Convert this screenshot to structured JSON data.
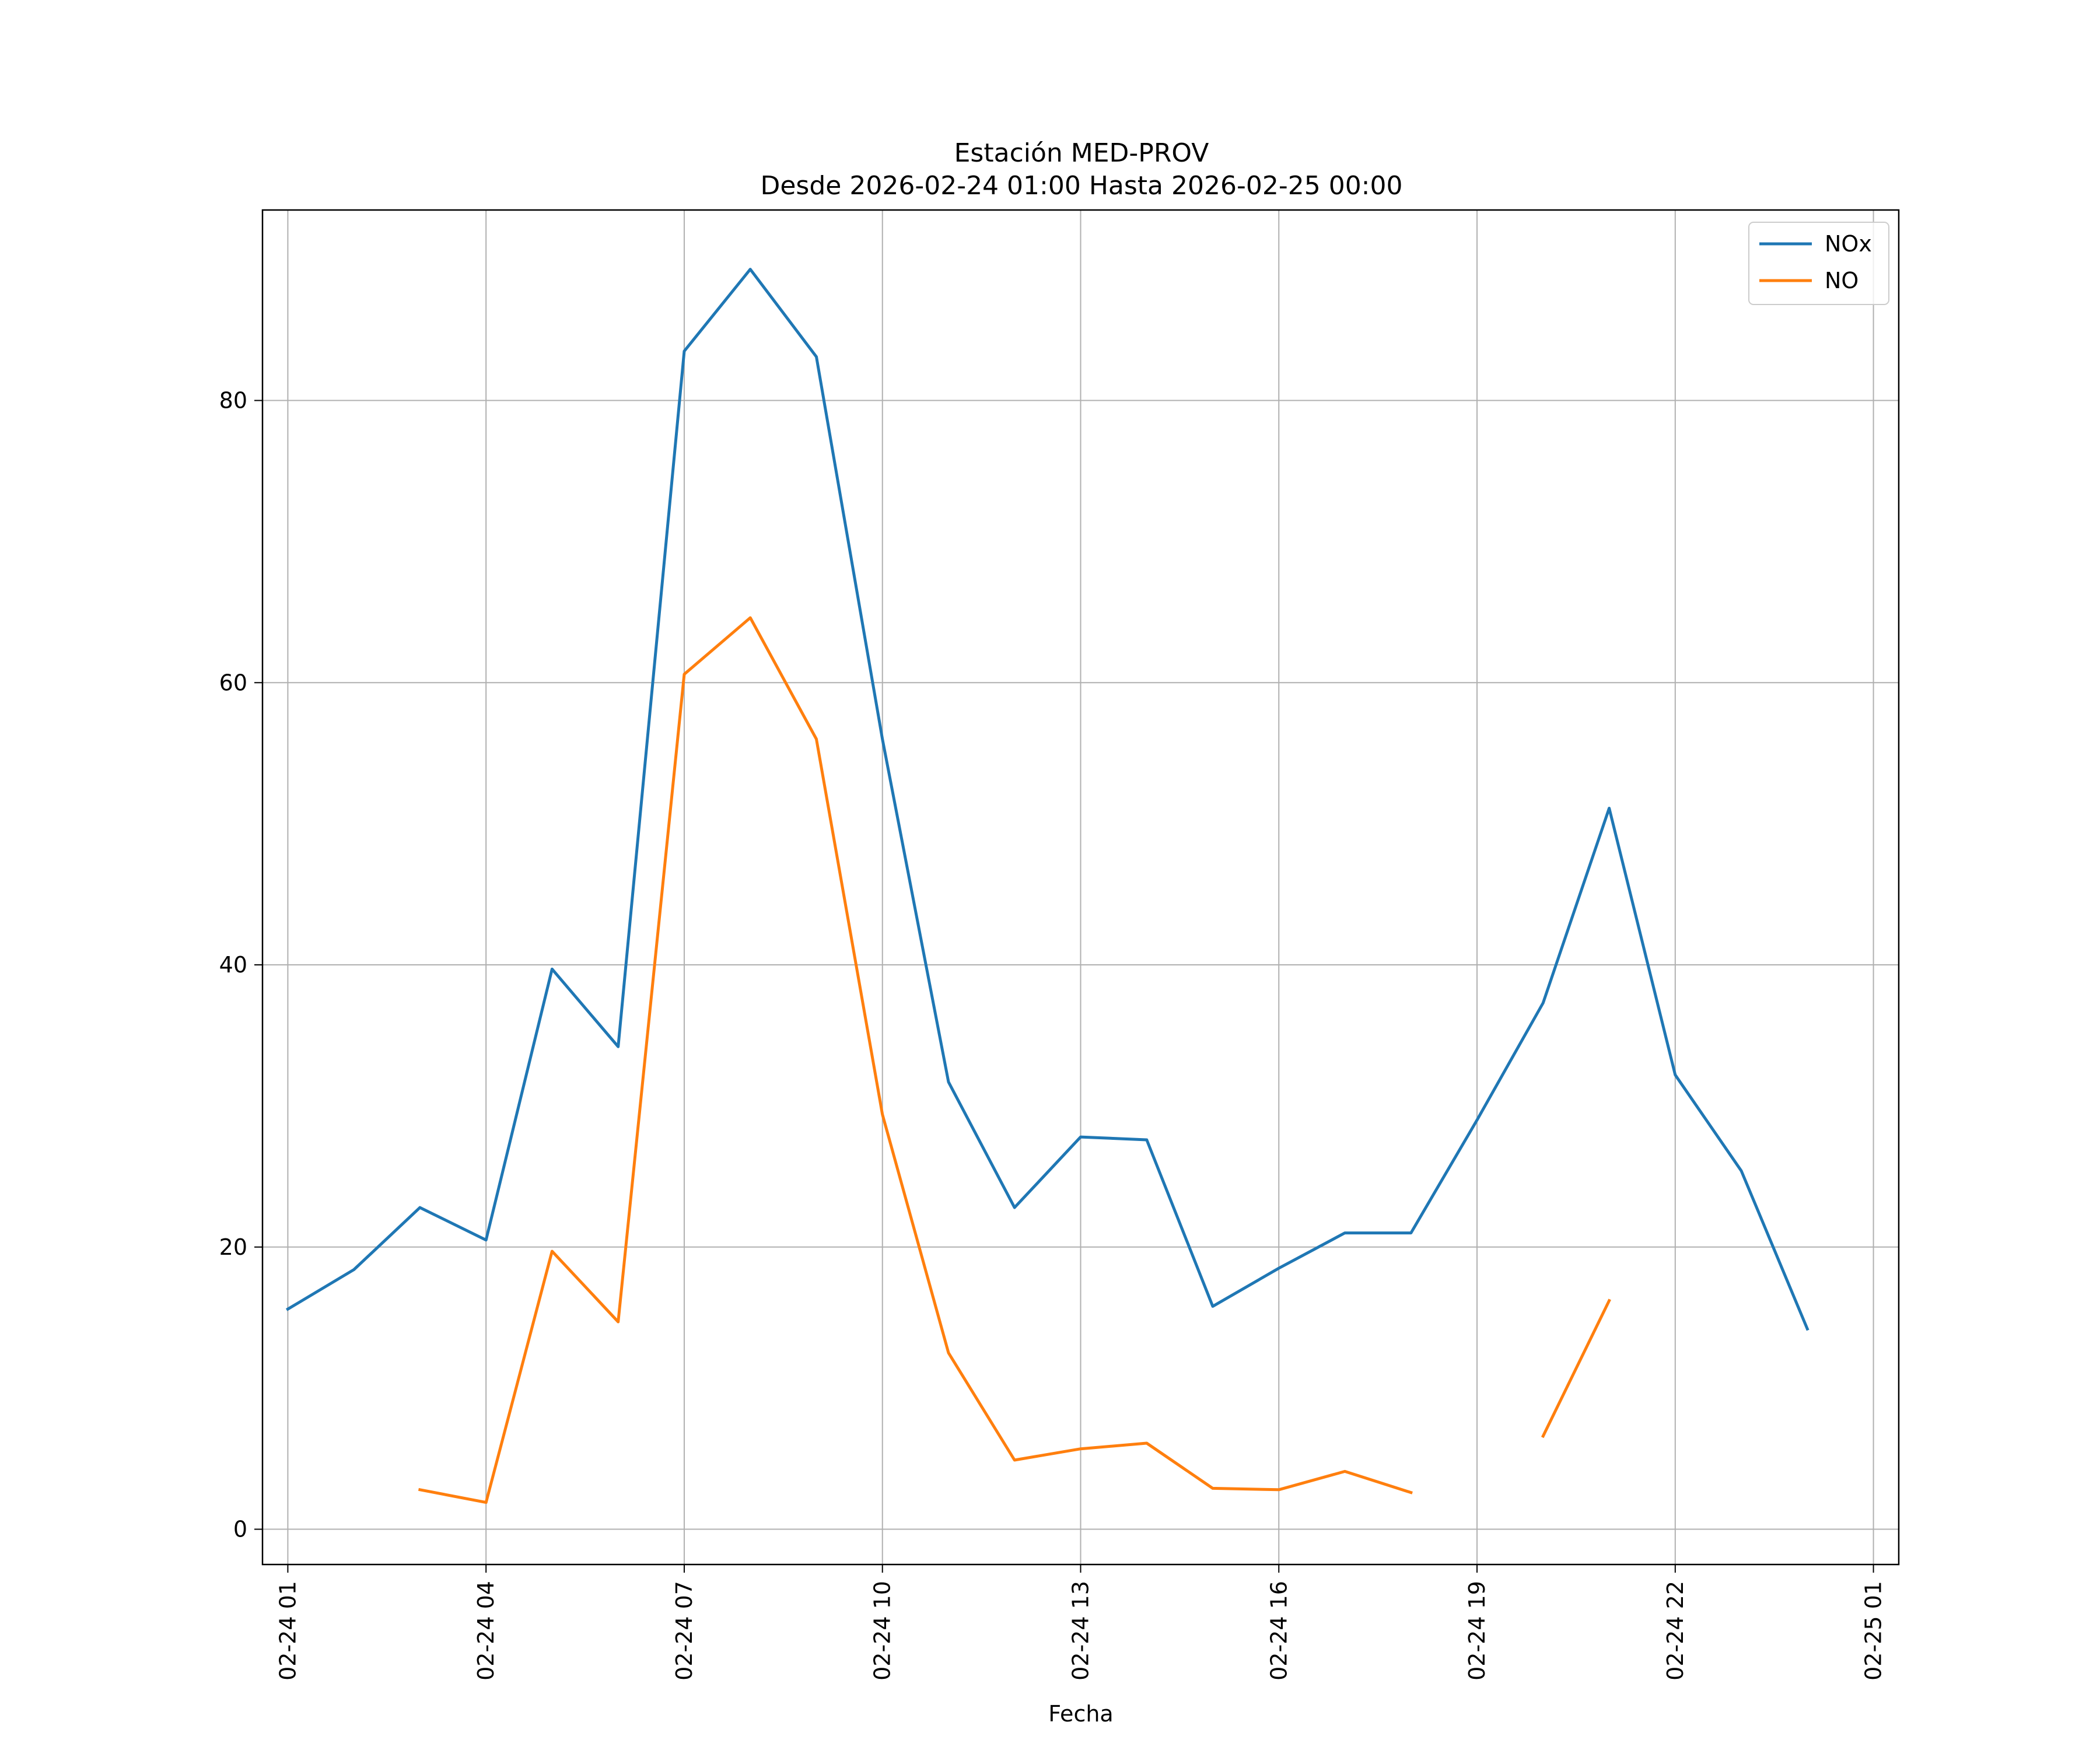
{
  "chart_data": {
    "type": "line",
    "title": "Estación MED-PROV",
    "subtitle": "Desde 2026-02-24 01:00 Hasta 2026-02-25 00:00",
    "xlabel": "Fecha",
    "ylabel": "",
    "x": [
      "2026-02-24 01:00",
      "2026-02-24 02:00",
      "2026-02-24 03:00",
      "2026-02-24 04:00",
      "2026-02-24 05:00",
      "2026-02-24 06:00",
      "2026-02-24 07:00",
      "2026-02-24 08:00",
      "2026-02-24 09:00",
      "2026-02-24 10:00",
      "2026-02-24 11:00",
      "2026-02-24 12:00",
      "2026-02-24 13:00",
      "2026-02-24 14:00",
      "2026-02-24 15:00",
      "2026-02-24 16:00",
      "2026-02-24 17:00",
      "2026-02-24 18:00",
      "2026-02-24 19:00",
      "2026-02-24 20:00",
      "2026-02-24 21:00",
      "2026-02-24 22:00",
      "2026-02-24 23:00",
      "2026-02-25 00:00"
    ],
    "xlim": [
      "2026-02-24 00:37",
      "2026-02-25 01:23"
    ],
    "x_ticks": [
      "02-24 01",
      "02-24 04",
      "02-24 07",
      "02-24 10",
      "02-24 13",
      "02-24 16",
      "02-24 19",
      "02-24 22",
      "02-25 01"
    ],
    "ylim": [
      -2.5,
      93.5
    ],
    "y_ticks": [
      0,
      20,
      40,
      60,
      80
    ],
    "grid": true,
    "legend_position": "top-right",
    "series": [
      {
        "name": "NOx",
        "color": "#1f77b4",
        "values": [
          15.6,
          18.4,
          22.8,
          20.5,
          39.7,
          34.2,
          83.5,
          89.3,
          83.1,
          56.0,
          31.7,
          22.8,
          27.8,
          27.6,
          15.8,
          18.5,
          21.0,
          21.0,
          29.0,
          37.3,
          51.1,
          32.2,
          25.4,
          14.2
        ]
      },
      {
        "name": "NO",
        "color": "#ff7f0e",
        "values": [
          null,
          null,
          2.8,
          1.9,
          19.7,
          14.7,
          60.6,
          64.6,
          56.0,
          29.4,
          12.5,
          4.9,
          5.7,
          6.1,
          2.9,
          2.8,
          4.1,
          2.6,
          null,
          6.6,
          16.2,
          null,
          null,
          null
        ]
      }
    ]
  }
}
